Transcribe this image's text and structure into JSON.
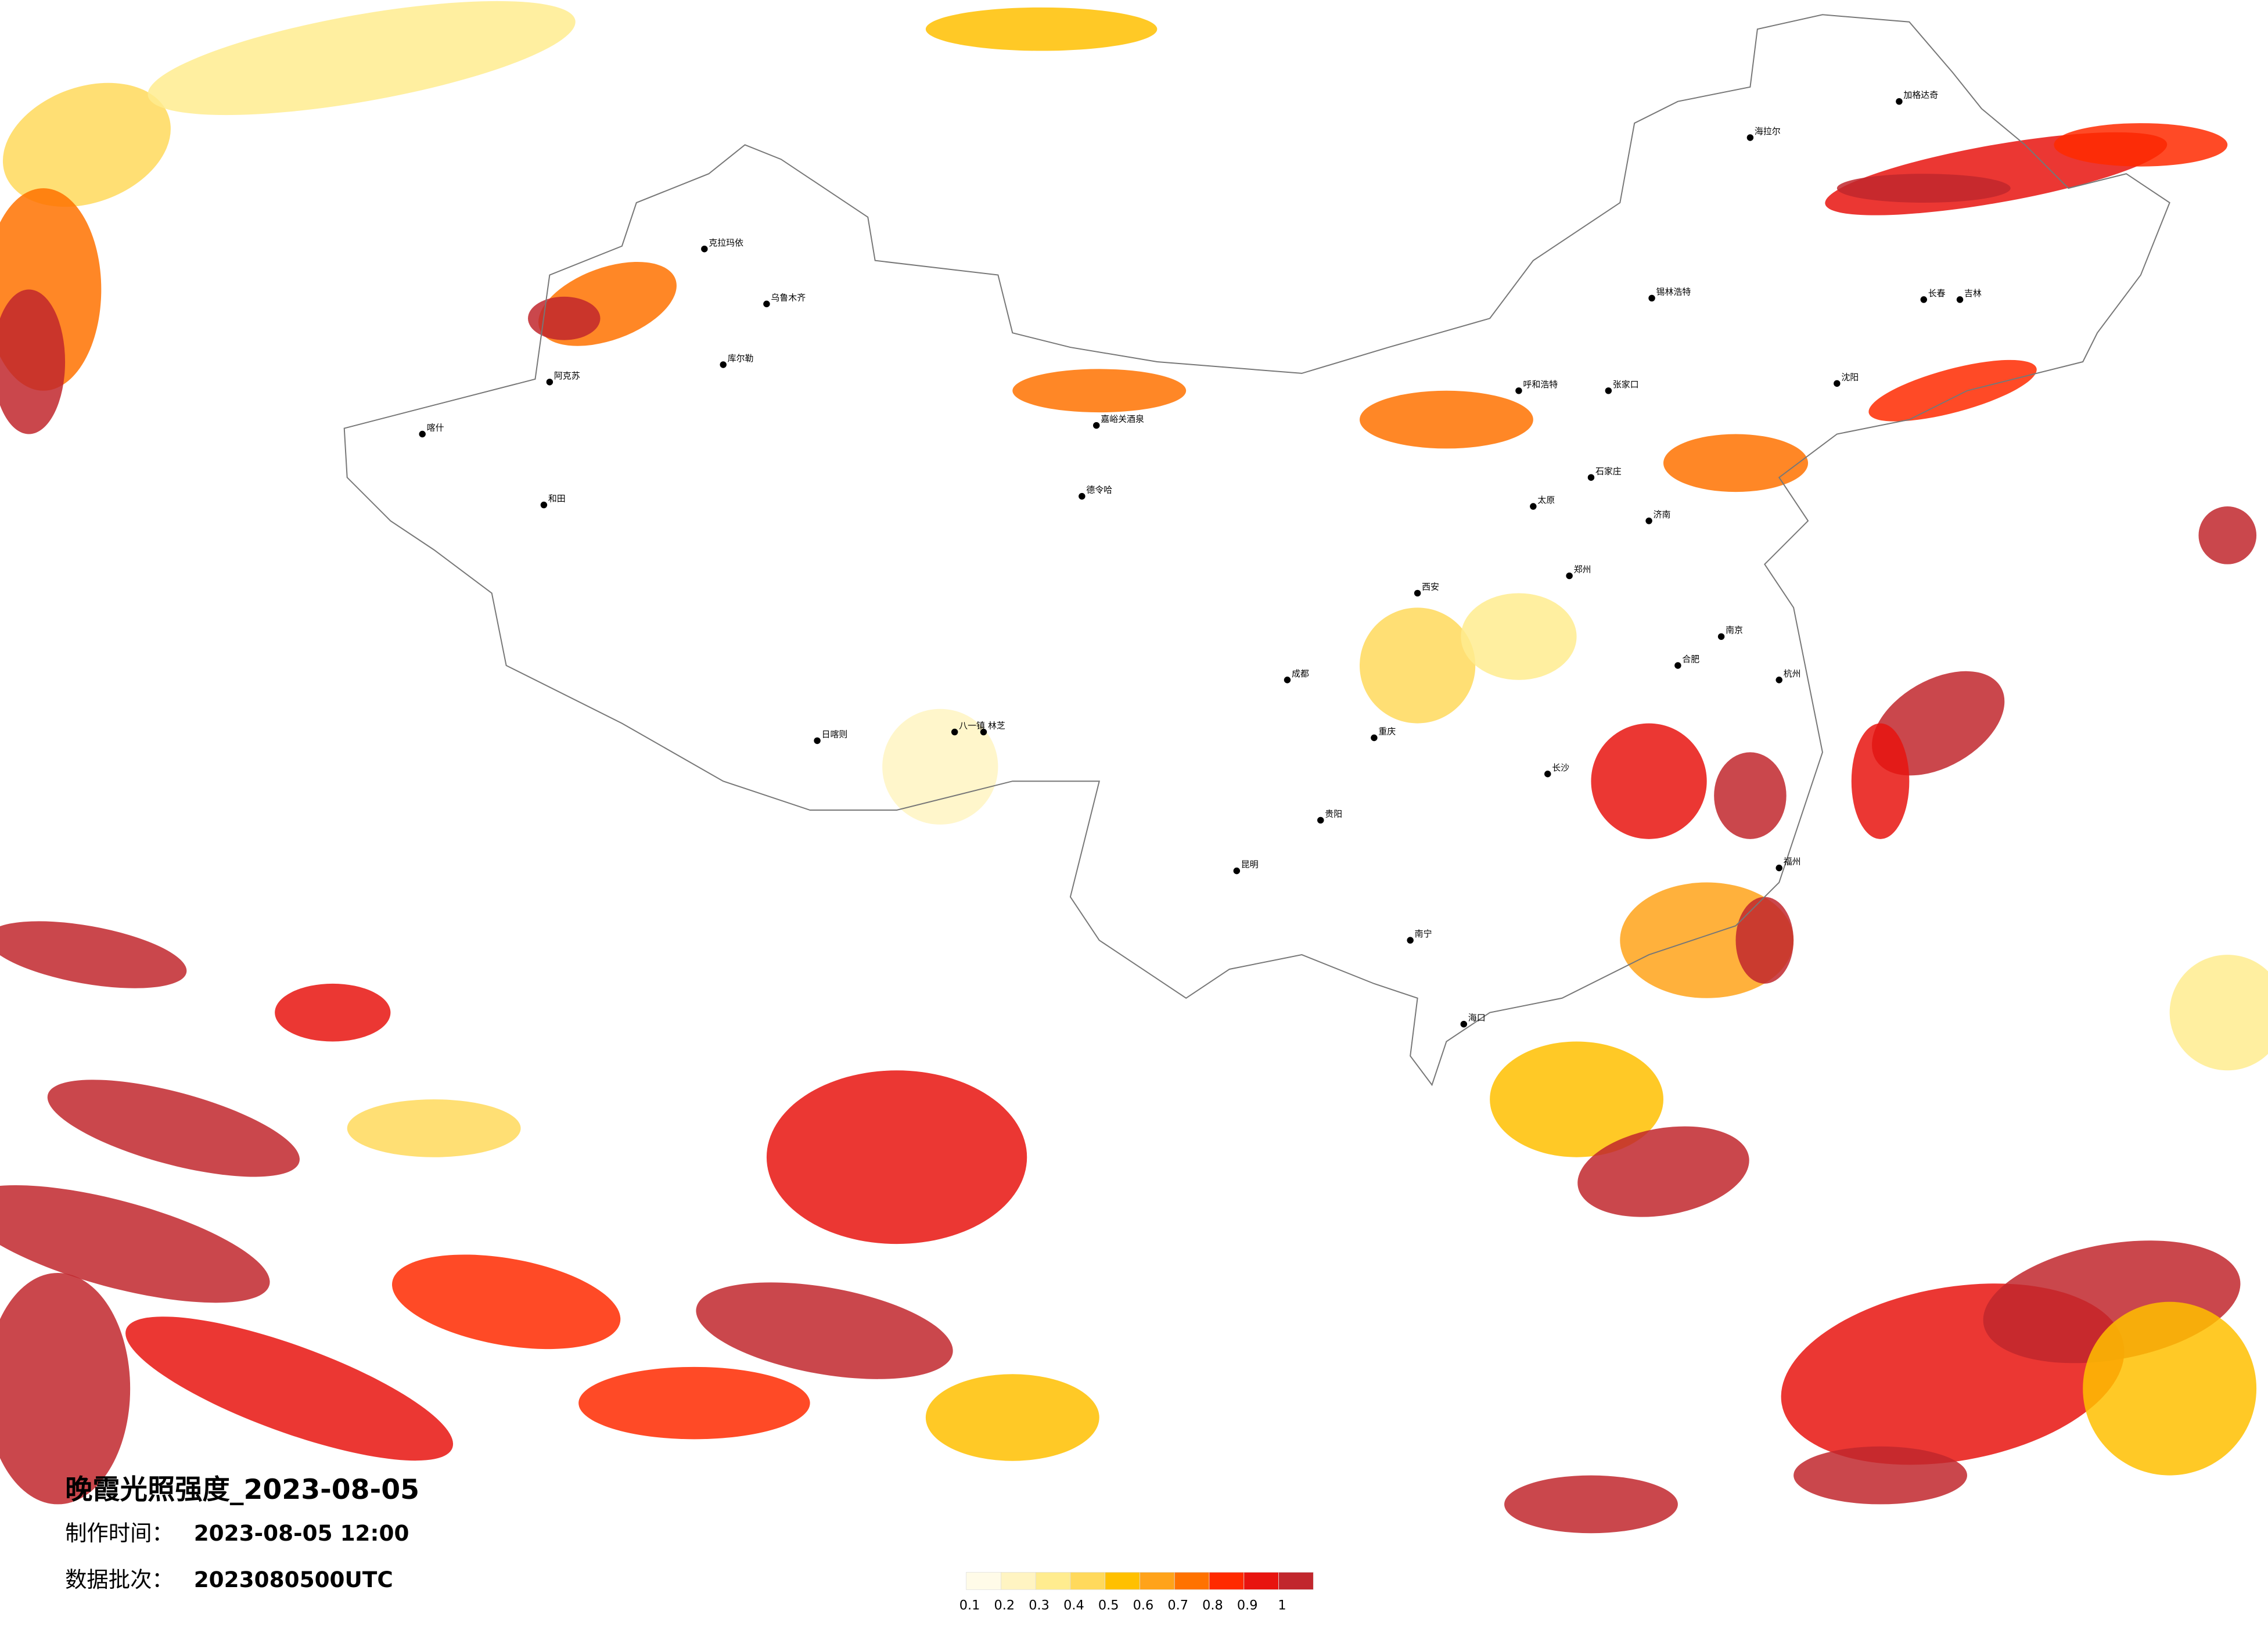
{
  "header": {
    "title": "晚霞光照强度_2023-08-05",
    "made_label": "制作时间：",
    "made_time": "2023-08-05 12:00",
    "batch_label": "数据批次：",
    "batch": "2023080500UTC"
  },
  "legend": {
    "colors": [
      "#fffbe8",
      "#fff4c2",
      "#ffec8f",
      "#ffd95c",
      "#ffc000",
      "#ffa31a",
      "#ff7200",
      "#ff2a00",
      "#e8140f",
      "#c1272d"
    ],
    "ticks": [
      0.1,
      0.2,
      0.3,
      0.4,
      0.5,
      0.6,
      0.7,
      0.8,
      0.9,
      1
    ]
  },
  "cities": [
    "克拉玛依",
    "乌鲁木齐",
    "阿克苏",
    "和田",
    "喀什",
    "库尔勒",
    "德令哈",
    "嘉峪关酒泉",
    "日喀则",
    "林芝",
    "八一镇",
    "海拉尔",
    "加格达奇",
    "长春",
    "吉林",
    "锡林浩特",
    "呼和浩特",
    "张家口",
    "石家庄",
    "太原",
    "郑州",
    "西安",
    "成都",
    "重庆",
    "长沙",
    "贵阳",
    "昆明",
    "南宁",
    "海口",
    "杭州",
    "福州",
    "合肥",
    "南京",
    "济南",
    "沈阳"
  ]
}
